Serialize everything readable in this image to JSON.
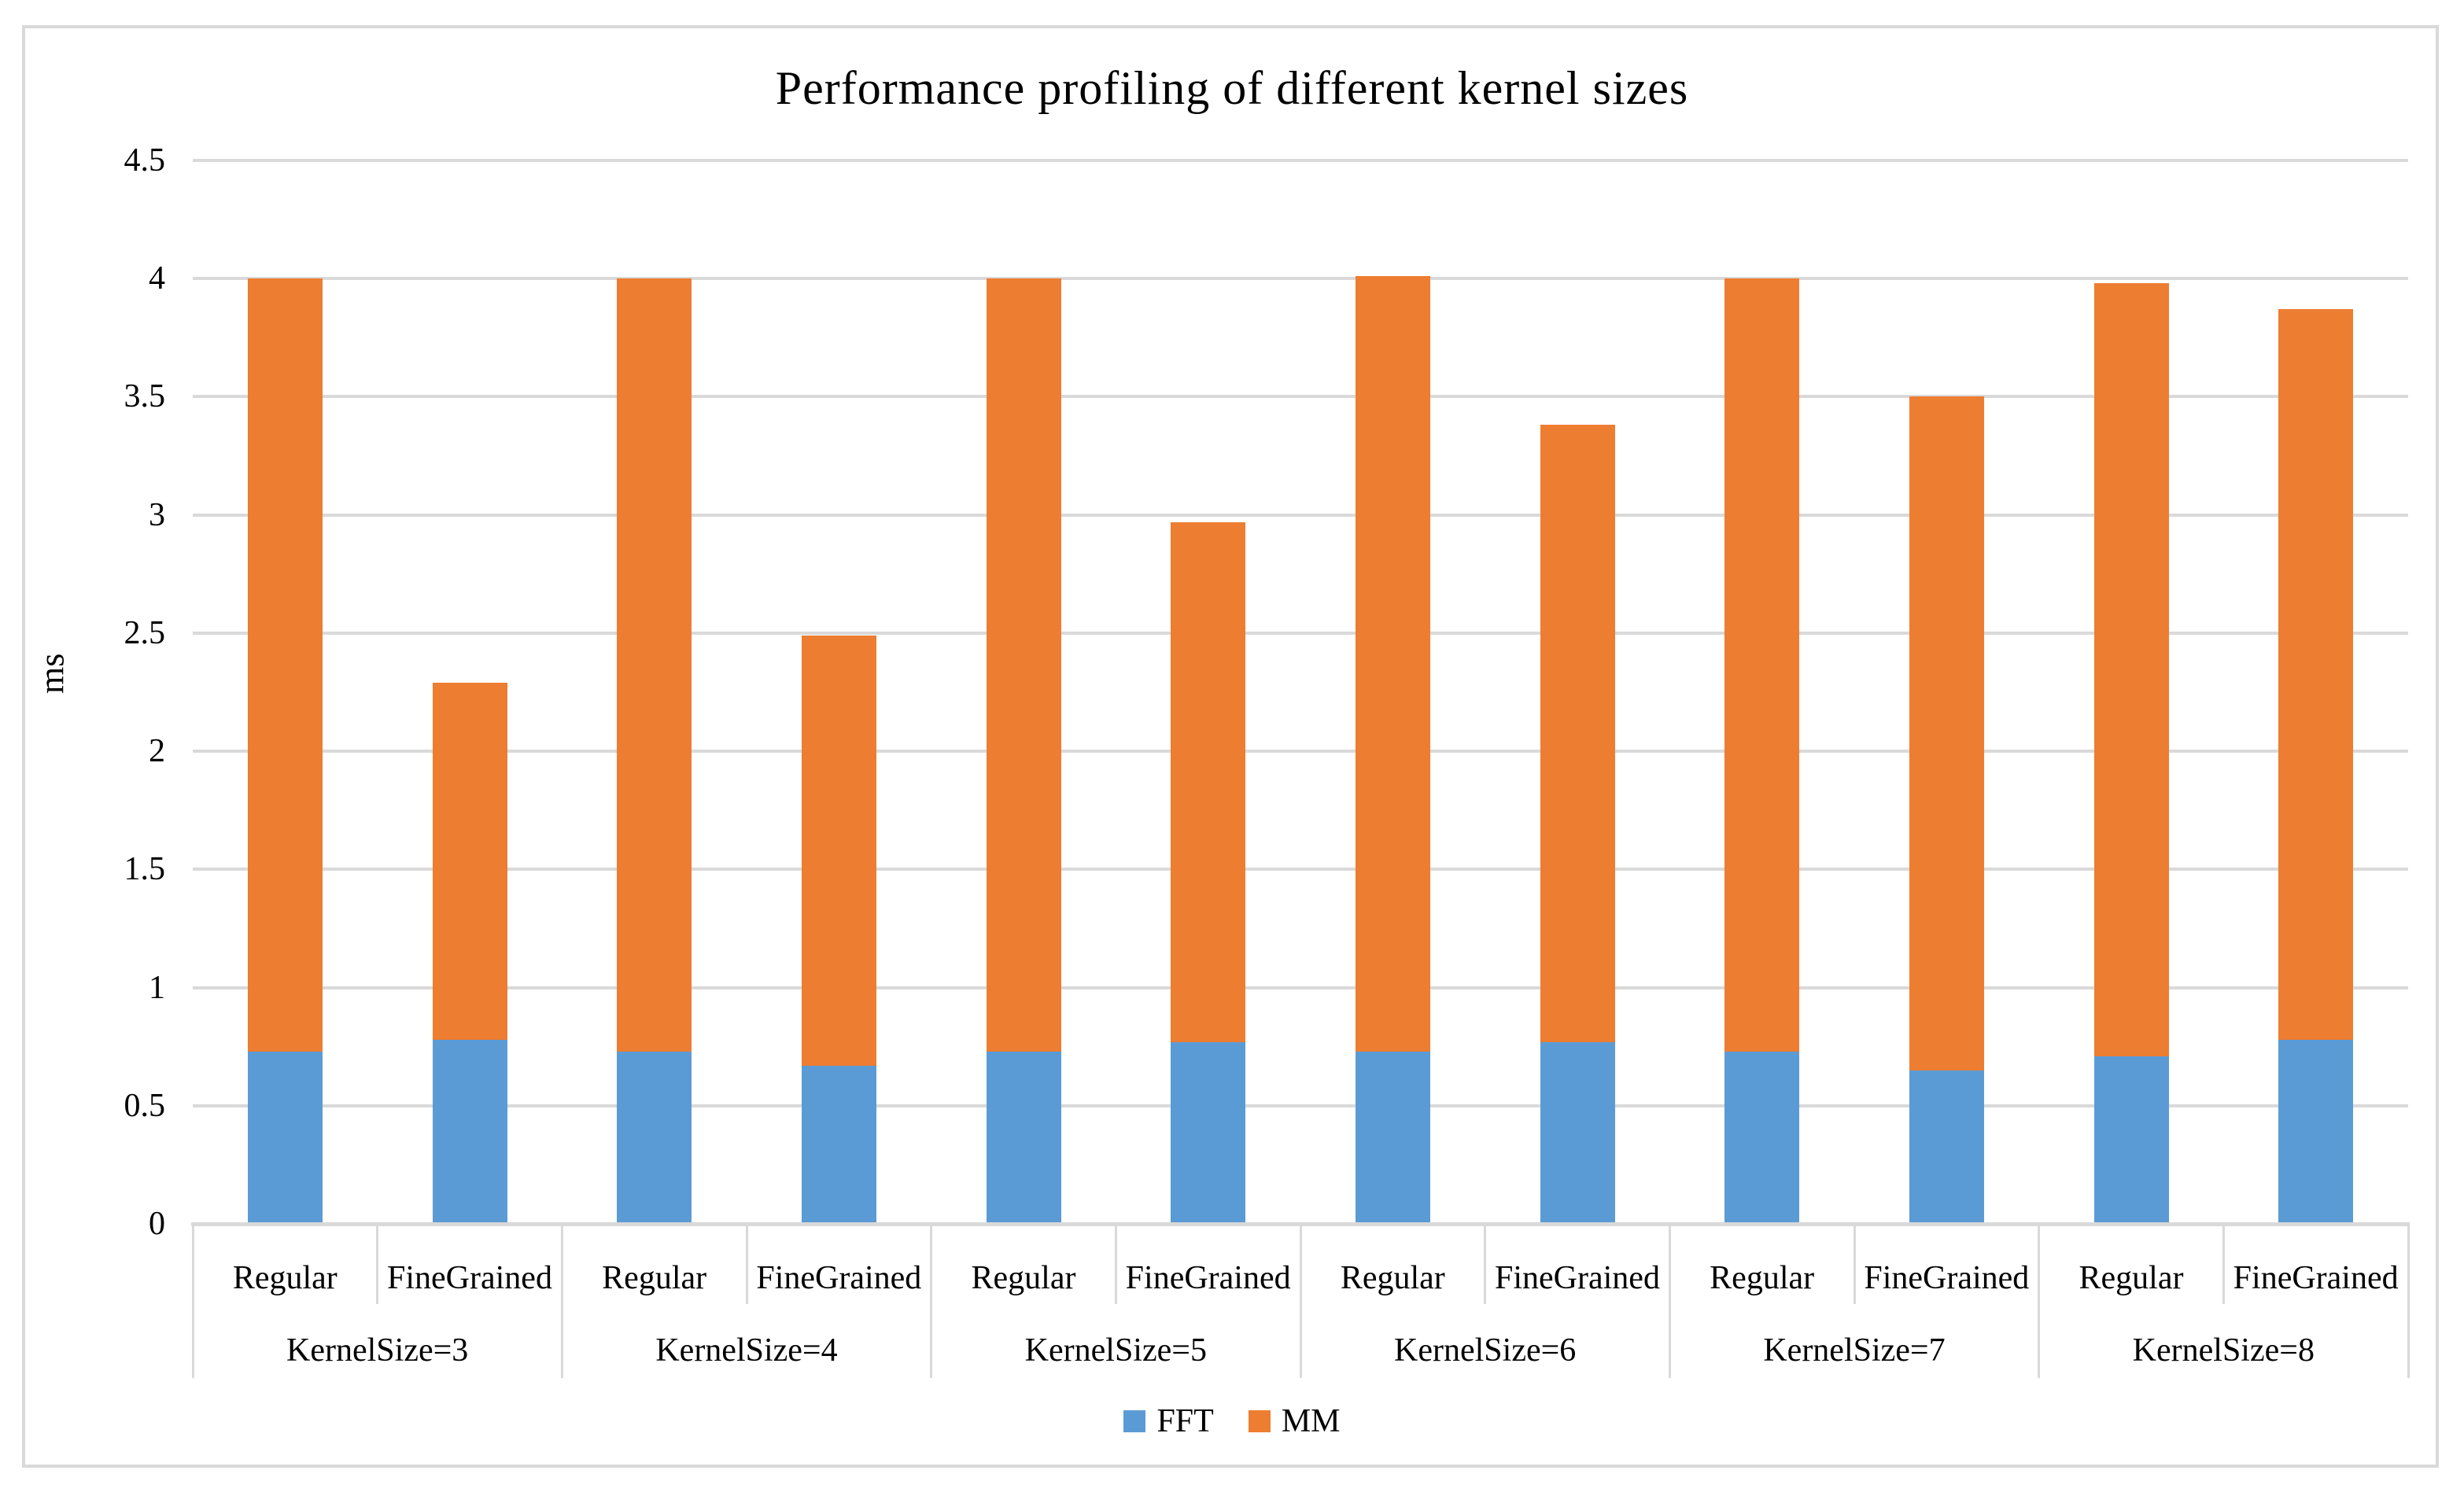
{
  "chart_data": {
    "type": "bar",
    "stacked": true,
    "title": "Performance profiling of different kernel sizes",
    "ylabel": "ms",
    "ylim": [
      0,
      4.5
    ],
    "ytick_step": 0.5,
    "ytick_labels": [
      "0",
      "0.5",
      "1",
      "1.5",
      "2",
      "2.5",
      "3",
      "3.5",
      "4",
      "4.5"
    ],
    "grid": true,
    "legend_position": "bottom",
    "categories": [
      "KernelSize=3",
      "KernelSize=4",
      "KernelSize=5",
      "KernelSize=6",
      "KernelSize=7",
      "KernelSize=8"
    ],
    "bar_types": [
      "Regular",
      "FineGrained"
    ],
    "series": [
      {
        "name": "FFT",
        "color": "#5b9bd5",
        "values": [
          [
            0.73,
            0.78
          ],
          [
            0.73,
            0.67
          ],
          [
            0.73,
            0.77
          ],
          [
            0.73,
            0.77
          ],
          [
            0.73,
            0.65
          ],
          [
            0.71,
            0.78
          ]
        ]
      },
      {
        "name": "MM",
        "color": "#ed7d31",
        "values": [
          [
            3.27,
            1.51
          ],
          [
            3.27,
            1.82
          ],
          [
            3.27,
            2.2
          ],
          [
            3.28,
            2.61
          ],
          [
            3.27,
            2.85
          ],
          [
            3.27,
            3.09
          ]
        ]
      }
    ],
    "stack_totals": [
      [
        4.0,
        2.29
      ],
      [
        4.0,
        2.49
      ],
      [
        4.0,
        2.97
      ],
      [
        4.01,
        3.38
      ],
      [
        4.0,
        3.5
      ],
      [
        3.98,
        3.87
      ]
    ]
  },
  "colors": {
    "fft_blue": "#5b9bd5",
    "mm_orange": "#ed7d31",
    "gridline_gray": "#d9d9d9",
    "text_black": "#000000",
    "background": "#ffffff"
  }
}
